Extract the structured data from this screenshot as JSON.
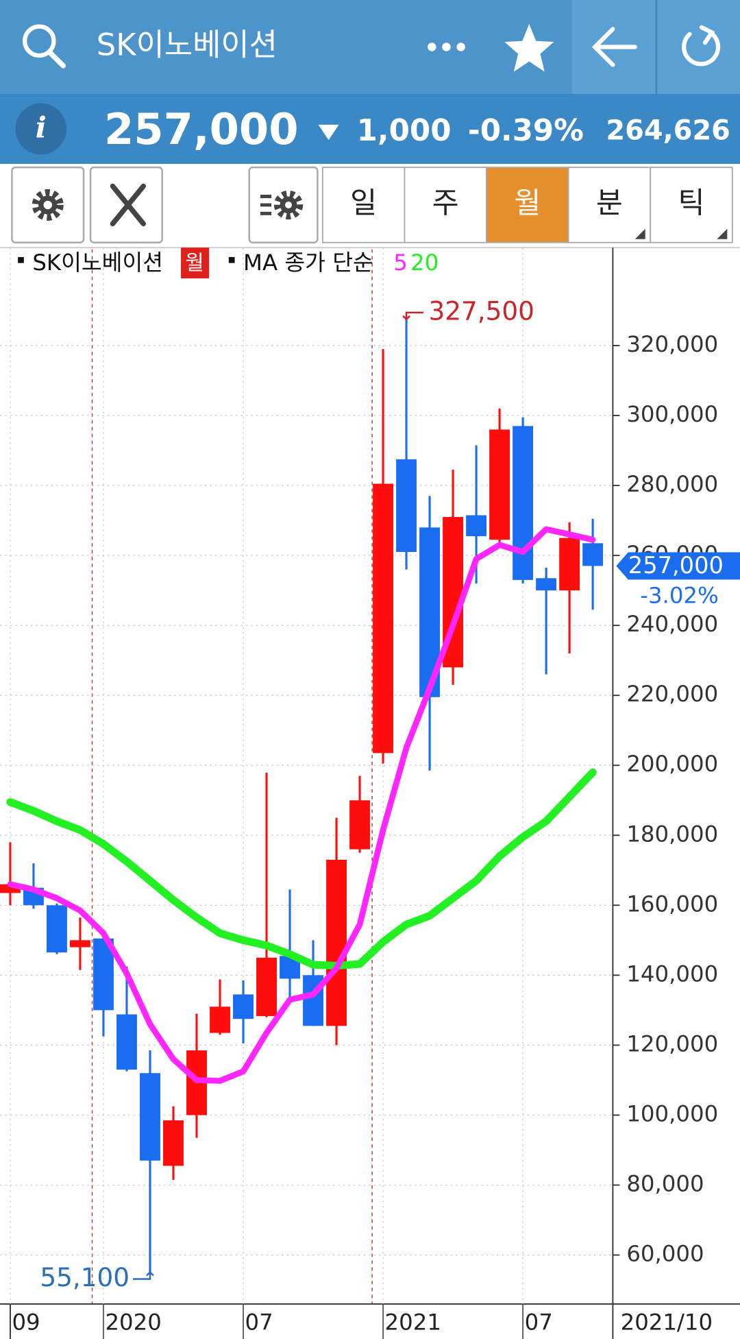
{
  "header": {
    "title": "SK이노베이션"
  },
  "quote": {
    "price": "257,000",
    "change": "1,000",
    "change_pct": "-0.39%",
    "volume": "264,626"
  },
  "toolbar": {
    "tabs": [
      "일",
      "주",
      "월",
      "분",
      "틱"
    ],
    "active_tab": 2
  },
  "chart_data": {
    "type": "candlestick",
    "legend": {
      "name": "SK이노베이션",
      "period": "월",
      "ma_label": "MA 종가 단순"
    },
    "categories": [
      "09",
      null,
      null,
      null,
      "2020",
      null,
      null,
      null,
      null,
      null,
      "07",
      null,
      null,
      null,
      null,
      null,
      "2021",
      null,
      null,
      null,
      null,
      null,
      "07",
      null,
      null,
      null
    ],
    "current_x_label": "2021/10",
    "open": [
      163500,
      165000,
      160000,
      148000,
      150500,
      128800,
      112000,
      85500,
      100000,
      123500,
      134500,
      128300,
      145500,
      140000,
      125500,
      176000,
      203500,
      287500,
      268000,
      228000,
      271500,
      264500,
      297000,
      253500,
      250000,
      263500
    ],
    "high": [
      178000,
      172000,
      160500,
      156500,
      153000,
      142500,
      118500,
      102500,
      129000,
      138800,
      138500,
      197900,
      164500,
      150000,
      185000,
      197000,
      319000,
      327500,
      277000,
      284500,
      291500,
      302000,
      299500,
      256500,
      269500,
      270500
    ],
    "low": [
      160000,
      159000,
      146000,
      141500,
      122500,
      112500,
      55100,
      81500,
      93500,
      123000,
      120500,
      128000,
      133500,
      125500,
      120000,
      175000,
      200500,
      256000,
      198500,
      223000,
      252000,
      263000,
      252000,
      226000,
      232000,
      244500
    ],
    "close": [
      166000,
      160000,
      146500,
      150000,
      130000,
      113000,
      87000,
      98500,
      118500,
      131000,
      127500,
      145000,
      139000,
      125500,
      173000,
      190000,
      280500,
      261000,
      219500,
      271000,
      265500,
      296000,
      253000,
      250000,
      265000,
      257000
    ],
    "up_color": "#ff0d0d",
    "down_color": "#1b6df0",
    "series": [
      {
        "name": "5",
        "color": "#ff26ff",
        "values": [
          166000,
          164500,
          162000,
          158500,
          152000,
          140500,
          126000,
          116000,
          110000,
          109800,
          112500,
          123500,
          133000,
          134500,
          142000,
          154500,
          181500,
          205000,
          222000,
          240000,
          259000,
          263000,
          261000,
          267500,
          266000,
          264500
        ]
      },
      {
        "name": "20",
        "color": "#22f022",
        "values": [
          189500,
          187000,
          184000,
          181500,
          177500,
          172500,
          167000,
          161500,
          156500,
          152000,
          150000,
          148500,
          146000,
          143000,
          142700,
          143200,
          149500,
          154500,
          157000,
          162000,
          167000,
          174000,
          179500,
          184000,
          191000,
          198000
        ]
      }
    ],
    "annotations": [
      {
        "value": 327500,
        "label": "327,500",
        "color": "#c8262a"
      },
      {
        "value": 55100,
        "label": "55,100",
        "color": "#2a6fb8"
      }
    ],
    "current_price": {
      "value": 257000,
      "label": "257,000",
      "change": "-3.02%"
    },
    "ylim": [
      46000,
      348000
    ],
    "yticks": [
      {
        "value": 60000,
        "label": "60,000"
      },
      {
        "value": 80000,
        "label": "80,000"
      },
      {
        "value": 100000,
        "label": "100,000"
      },
      {
        "value": 120000,
        "label": "120,000"
      },
      {
        "value": 140000,
        "label": "140,000"
      },
      {
        "value": 160000,
        "label": "160,000"
      },
      {
        "value": 180000,
        "label": "180,000"
      },
      {
        "value": 200000,
        "label": "200,000"
      },
      {
        "value": 220000,
        "label": "220,000"
      },
      {
        "value": 240000,
        "label": "240,000"
      },
      {
        "value": 260000,
        "label": "260,000"
      },
      {
        "value": 280000,
        "label": "280,000"
      },
      {
        "value": 300000,
        "label": "300,000"
      },
      {
        "value": 320000,
        "label": "320,000"
      }
    ],
    "grid": true
  }
}
